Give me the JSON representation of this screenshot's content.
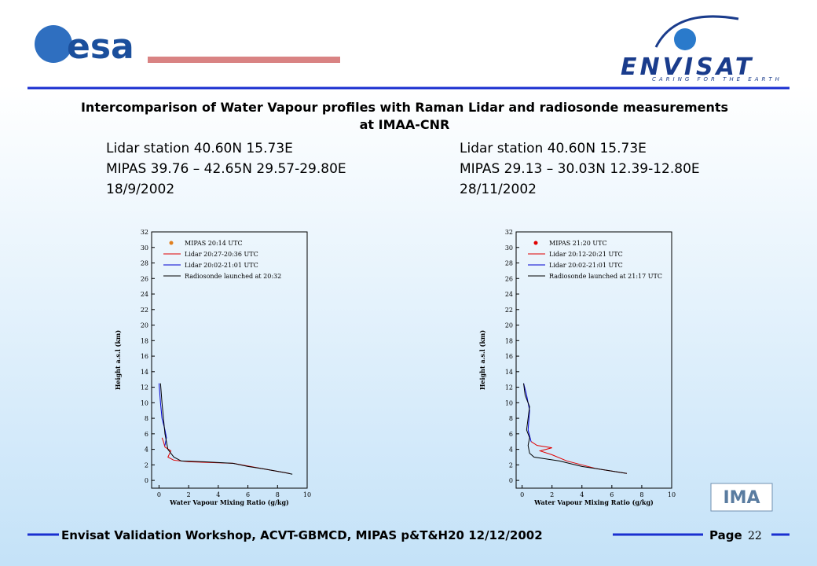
{
  "header": {
    "logo_left": "esa",
    "logo_right": "ENVISAT",
    "tagline": "CARING FOR THE EARTH",
    "logo_corner": "IMA"
  },
  "title": "Intercomparison of Water Vapour profiles with Raman Lidar and radiosonde measurements at IMAA-CNR",
  "captions": [
    [
      "Lidar station 40.60N 15.73E",
      "MIPAS 39.76 – 42.65N 29.57-29.80E",
      "18/9/2002"
    ],
    [
      "Lidar station 40.60N 15.73E",
      "MIPAS 29.13 – 30.03N 12.39-12.80E",
      "28/11/2002"
    ]
  ],
  "footer": {
    "text": "Envisat Validation Workshop, ACVT-GBMCD,  MIPAS p&T&H20 12/12/2002",
    "page_label": "Page",
    "page_number": "22"
  },
  "chart_data": [
    {
      "type": "line",
      "x_label": "Water Vapour Mixing Ratio (g/kg)",
      "y_label": "Height a.s.l (km)",
      "xlim": [
        -0.5,
        10
      ],
      "xticks": [
        0,
        2,
        4,
        6,
        8,
        10
      ],
      "ylim": [
        -1,
        32
      ],
      "yticks": [
        0,
        2,
        4,
        6,
        8,
        10,
        12,
        14,
        16,
        18,
        20,
        22,
        24,
        26,
        28,
        30,
        32
      ],
      "series": [
        {
          "name": "MIPAS 20:14 UTC",
          "color": "#e08020",
          "mode": "markers",
          "x": [],
          "values": []
        },
        {
          "name": "Lidar 20:27-20:36 UTC",
          "color": "#e00000",
          "mode": "line",
          "x": [
            8.8,
            7,
            5,
            2,
            1,
            0.6,
            0.8,
            0.4,
            0.3,
            0.2
          ],
          "values": [
            0.9,
            1.5,
            2.2,
            2.4,
            2.6,
            3,
            3.8,
            4.3,
            5,
            5.5
          ]
        },
        {
          "name": "Lidar 20:02-21:01 UTC",
          "color": "#0000d0",
          "mode": "line",
          "x": [
            0.4,
            0.5,
            0.4,
            0.2,
            0.1,
            0
          ],
          "values": [
            4.5,
            5.5,
            6.5,
            8,
            10,
            12.5
          ]
        },
        {
          "name": "Radiosonde launched at 20:32",
          "color": "#000000",
          "mode": "line",
          "x": [
            9,
            8.5,
            7,
            6,
            5,
            3,
            1.5,
            1,
            0.8,
            0.6,
            0.5,
            0.4,
            0.3,
            0.2,
            0.1
          ],
          "values": [
            0.8,
            1,
            1.5,
            1.8,
            2.2,
            2.4,
            2.5,
            3,
            3.5,
            4,
            5,
            6,
            8,
            10,
            12.5
          ]
        }
      ]
    },
    {
      "type": "line",
      "x_label": "Water Vapour Mixing Ratio (g/kg)",
      "y_label": "Height a.s.l (km)",
      "xlim": [
        -0.4,
        10
      ],
      "xticks": [
        0,
        2,
        4,
        6,
        8,
        10
      ],
      "ylim": [
        -1,
        32
      ],
      "yticks": [
        0,
        2,
        4,
        6,
        8,
        10,
        12,
        14,
        16,
        18,
        20,
        22,
        24,
        26,
        28,
        30,
        32
      ],
      "series": [
        {
          "name": "MIPAS 21:20 UTC",
          "color": "#e00000",
          "mode": "markers",
          "x": [],
          "values": []
        },
        {
          "name": "Lidar 20:12-20:21 UTC",
          "color": "#e00000",
          "mode": "line",
          "x": [
            7,
            5,
            3,
            2,
            1.2,
            2,
            1,
            0.6
          ],
          "values": [
            0.9,
            1.5,
            2.5,
            3.3,
            3.8,
            4.2,
            4.5,
            5
          ]
        },
        {
          "name": "Lidar 20:02-21:01 UTC",
          "color": "#0000d0",
          "mode": "line",
          "x": [
            0.6,
            0.4,
            0.5,
            0.3,
            0.1
          ],
          "values": [
            5,
            6.5,
            9,
            11,
            12.5
          ]
        },
        {
          "name": "Radiosonde launched at 21:17 UTC",
          "color": "#000000",
          "mode": "line",
          "x": [
            7,
            6,
            4,
            2.5,
            1.5,
            0.8,
            0.5,
            0.4,
            0.5,
            0.3,
            0.4,
            0.5,
            0.2,
            0.1
          ],
          "values": [
            0.9,
            1.2,
            1.8,
            2.5,
            2.8,
            3,
            3.5,
            4.5,
            5.5,
            6.5,
            8,
            9.5,
            11,
            12.5
          ]
        }
      ]
    }
  ]
}
